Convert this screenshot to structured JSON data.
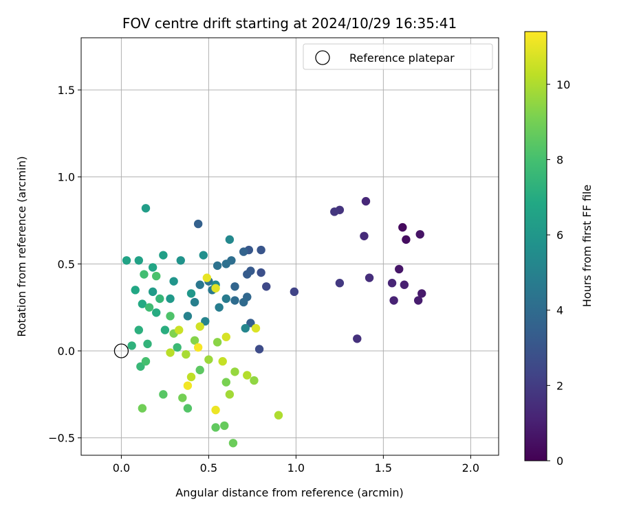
{
  "chart_data": {
    "type": "scatter",
    "title": "FOV centre drift starting at 2024/10/29 16:35:41",
    "xlabel": "Angular distance from reference (arcmin)",
    "ylabel": "Rotation from reference (arcmin)",
    "xlim": [
      -0.23,
      2.16
    ],
    "ylim": [
      -0.6,
      1.8
    ],
    "xticks": [
      0.0,
      0.5,
      1.0,
      1.5,
      2.0
    ],
    "xtick_labels": [
      "0.0",
      "0.5",
      "1.0",
      "1.5",
      "2.0"
    ],
    "yticks": [
      -0.5,
      0.0,
      0.5,
      1.0,
      1.5
    ],
    "ytick_labels": [
      "−0.5",
      "0.0",
      "0.5",
      "1.0",
      "1.5"
    ],
    "grid": true,
    "legend": {
      "placement": "top-right",
      "entries": [
        "Reference platepar"
      ]
    },
    "reference_point": {
      "x": 0.0,
      "y": 0.0
    },
    "colorbar": {
      "label": "Hours from first FF file",
      "range": [
        0,
        11.4
      ],
      "ticks": [
        0,
        2,
        4,
        6,
        8,
        10
      ],
      "tick_labels": [
        "0",
        "2",
        "4",
        "6",
        "8",
        "10"
      ],
      "colormap": "viridis"
    },
    "points": [
      {
        "x": 1.61,
        "y": 0.71,
        "c": 0.3
      },
      {
        "x": 1.63,
        "y": 0.64,
        "c": 0.4
      },
      {
        "x": 1.71,
        "y": 0.67,
        "c": 0.6
      },
      {
        "x": 1.59,
        "y": 0.47,
        "c": 0.7
      },
      {
        "x": 1.72,
        "y": 0.33,
        "c": 0.8
      },
      {
        "x": 1.7,
        "y": 0.29,
        "c": 0.9
      },
      {
        "x": 1.62,
        "y": 0.38,
        "c": 1.0
      },
      {
        "x": 1.56,
        "y": 0.29,
        "c": 1.1
      },
      {
        "x": 1.55,
        "y": 0.39,
        "c": 1.2
      },
      {
        "x": 1.4,
        "y": 0.86,
        "c": 1.3
      },
      {
        "x": 1.39,
        "y": 0.66,
        "c": 1.4
      },
      {
        "x": 1.42,
        "y": 0.42,
        "c": 1.5
      },
      {
        "x": 1.35,
        "y": 0.07,
        "c": 1.6
      },
      {
        "x": 1.25,
        "y": 0.81,
        "c": 1.7
      },
      {
        "x": 1.22,
        "y": 0.8,
        "c": 1.8
      },
      {
        "x": 1.25,
        "y": 0.39,
        "c": 1.9
      },
      {
        "x": 0.99,
        "y": 0.34,
        "c": 2.3
      },
      {
        "x": 0.83,
        "y": 0.37,
        "c": 2.5
      },
      {
        "x": 0.79,
        "y": 0.01,
        "c": 2.6
      },
      {
        "x": 0.8,
        "y": 0.45,
        "c": 2.8
      },
      {
        "x": 0.8,
        "y": 0.58,
        "c": 3.0
      },
      {
        "x": 0.73,
        "y": 0.58,
        "c": 3.1
      },
      {
        "x": 0.74,
        "y": 0.46,
        "c": 3.2
      },
      {
        "x": 0.72,
        "y": 0.44,
        "c": 3.3
      },
      {
        "x": 0.74,
        "y": 0.16,
        "c": 3.4
      },
      {
        "x": 0.44,
        "y": 0.73,
        "c": 3.5
      },
      {
        "x": 0.7,
        "y": 0.57,
        "c": 3.6
      },
      {
        "x": 0.65,
        "y": 0.37,
        "c": 3.7
      },
      {
        "x": 0.72,
        "y": 0.31,
        "c": 3.8
      },
      {
        "x": 0.7,
        "y": 0.28,
        "c": 3.9
      },
      {
        "x": 0.65,
        "y": 0.29,
        "c": 4.0
      },
      {
        "x": 0.63,
        "y": 0.52,
        "c": 4.1
      },
      {
        "x": 0.6,
        "y": 0.5,
        "c": 4.2
      },
      {
        "x": 0.55,
        "y": 0.49,
        "c": 4.3
      },
      {
        "x": 0.5,
        "y": 0.4,
        "c": 4.4
      },
      {
        "x": 0.45,
        "y": 0.38,
        "c": 4.5
      },
      {
        "x": 0.52,
        "y": 0.35,
        "c": 4.6
      },
      {
        "x": 0.6,
        "y": 0.3,
        "c": 4.7
      },
      {
        "x": 0.56,
        "y": 0.25,
        "c": 4.8
      },
      {
        "x": 0.42,
        "y": 0.28,
        "c": 4.9
      },
      {
        "x": 0.38,
        "y": 0.2,
        "c": 5.0
      },
      {
        "x": 0.48,
        "y": 0.17,
        "c": 5.1
      },
      {
        "x": 0.71,
        "y": 0.13,
        "c": 5.2
      },
      {
        "x": 0.62,
        "y": 0.64,
        "c": 5.3
      },
      {
        "x": 0.54,
        "y": 0.38,
        "c": 5.4
      },
      {
        "x": 0.47,
        "y": 0.55,
        "c": 5.6
      },
      {
        "x": 0.34,
        "y": 0.52,
        "c": 5.8
      },
      {
        "x": 0.3,
        "y": 0.4,
        "c": 5.9
      },
      {
        "x": 0.4,
        "y": 0.33,
        "c": 6.0
      },
      {
        "x": 0.28,
        "y": 0.3,
        "c": 6.1
      },
      {
        "x": 0.18,
        "y": 0.34,
        "c": 6.2
      },
      {
        "x": 0.14,
        "y": 0.82,
        "c": 6.3
      },
      {
        "x": 0.24,
        "y": 0.55,
        "c": 6.4
      },
      {
        "x": 0.1,
        "y": 0.52,
        "c": 6.5
      },
      {
        "x": 0.03,
        "y": 0.52,
        "c": 6.6
      },
      {
        "x": 0.18,
        "y": 0.48,
        "c": 6.7
      },
      {
        "x": 0.08,
        "y": 0.35,
        "c": 6.8
      },
      {
        "x": 0.12,
        "y": 0.27,
        "c": 6.9
      },
      {
        "x": 0.2,
        "y": 0.22,
        "c": 7.0
      },
      {
        "x": 0.25,
        "y": 0.12,
        "c": 7.1
      },
      {
        "x": 0.1,
        "y": 0.12,
        "c": 7.2
      },
      {
        "x": 0.06,
        "y": 0.03,
        "c": 7.3
      },
      {
        "x": 0.15,
        "y": 0.04,
        "c": 7.4
      },
      {
        "x": 0.22,
        "y": 0.3,
        "c": 7.5
      },
      {
        "x": 0.11,
        "y": -0.09,
        "c": 7.6
      },
      {
        "x": 0.32,
        "y": 0.02,
        "c": 7.7
      },
      {
        "x": 0.16,
        "y": 0.25,
        "c": 7.8
      },
      {
        "x": 0.13,
        "y": 0.44,
        "c": 7.9
      },
      {
        "x": 0.14,
        "y": -0.06,
        "c": 8.0
      },
      {
        "x": 0.2,
        "y": 0.43,
        "c": 8.1
      },
      {
        "x": 0.28,
        "y": 0.2,
        "c": 8.2
      },
      {
        "x": 0.38,
        "y": -0.33,
        "c": 8.3
      },
      {
        "x": 0.24,
        "y": -0.25,
        "c": 8.4
      },
      {
        "x": 0.45,
        "y": -0.11,
        "c": 8.5
      },
      {
        "x": 0.54,
        "y": -0.44,
        "c": 8.6
      },
      {
        "x": 0.59,
        "y": -0.43,
        "c": 8.7
      },
      {
        "x": 0.64,
        "y": -0.53,
        "c": 8.8
      },
      {
        "x": 0.12,
        "y": -0.33,
        "c": 8.9
      },
      {
        "x": 0.35,
        "y": -0.27,
        "c": 9.0
      },
      {
        "x": 0.6,
        "y": -0.18,
        "c": 9.1
      },
      {
        "x": 0.3,
        "y": 0.1,
        "c": 9.2
      },
      {
        "x": 0.42,
        "y": 0.06,
        "c": 9.3
      },
      {
        "x": 0.55,
        "y": 0.05,
        "c": 9.4
      },
      {
        "x": 0.76,
        "y": -0.17,
        "c": 9.5
      },
      {
        "x": 0.65,
        "y": -0.12,
        "c": 9.6
      },
      {
        "x": 0.5,
        "y": -0.05,
        "c": 9.7
      },
      {
        "x": 0.62,
        "y": -0.25,
        "c": 9.8
      },
      {
        "x": 0.37,
        "y": -0.02,
        "c": 9.9
      },
      {
        "x": 0.9,
        "y": -0.37,
        "c": 10.0
      },
      {
        "x": 0.72,
        "y": -0.14,
        "c": 10.1
      },
      {
        "x": 0.28,
        "y": -0.01,
        "c": 10.2
      },
      {
        "x": 0.4,
        "y": -0.15,
        "c": 10.3
      },
      {
        "x": 0.58,
        "y": -0.06,
        "c": 10.4
      },
      {
        "x": 0.33,
        "y": 0.12,
        "c": 10.5
      },
      {
        "x": 0.45,
        "y": 0.14,
        "c": 10.6
      },
      {
        "x": 0.6,
        "y": 0.08,
        "c": 10.7
      },
      {
        "x": 0.77,
        "y": 0.13,
        "c": 10.8
      },
      {
        "x": 0.54,
        "y": 0.36,
        "c": 10.9
      },
      {
        "x": 0.49,
        "y": 0.42,
        "c": 11.0
      },
      {
        "x": 0.54,
        "y": -0.34,
        "c": 11.1
      },
      {
        "x": 0.38,
        "y": -0.2,
        "c": 11.2
      },
      {
        "x": 0.44,
        "y": 0.02,
        "c": 11.3
      }
    ]
  }
}
